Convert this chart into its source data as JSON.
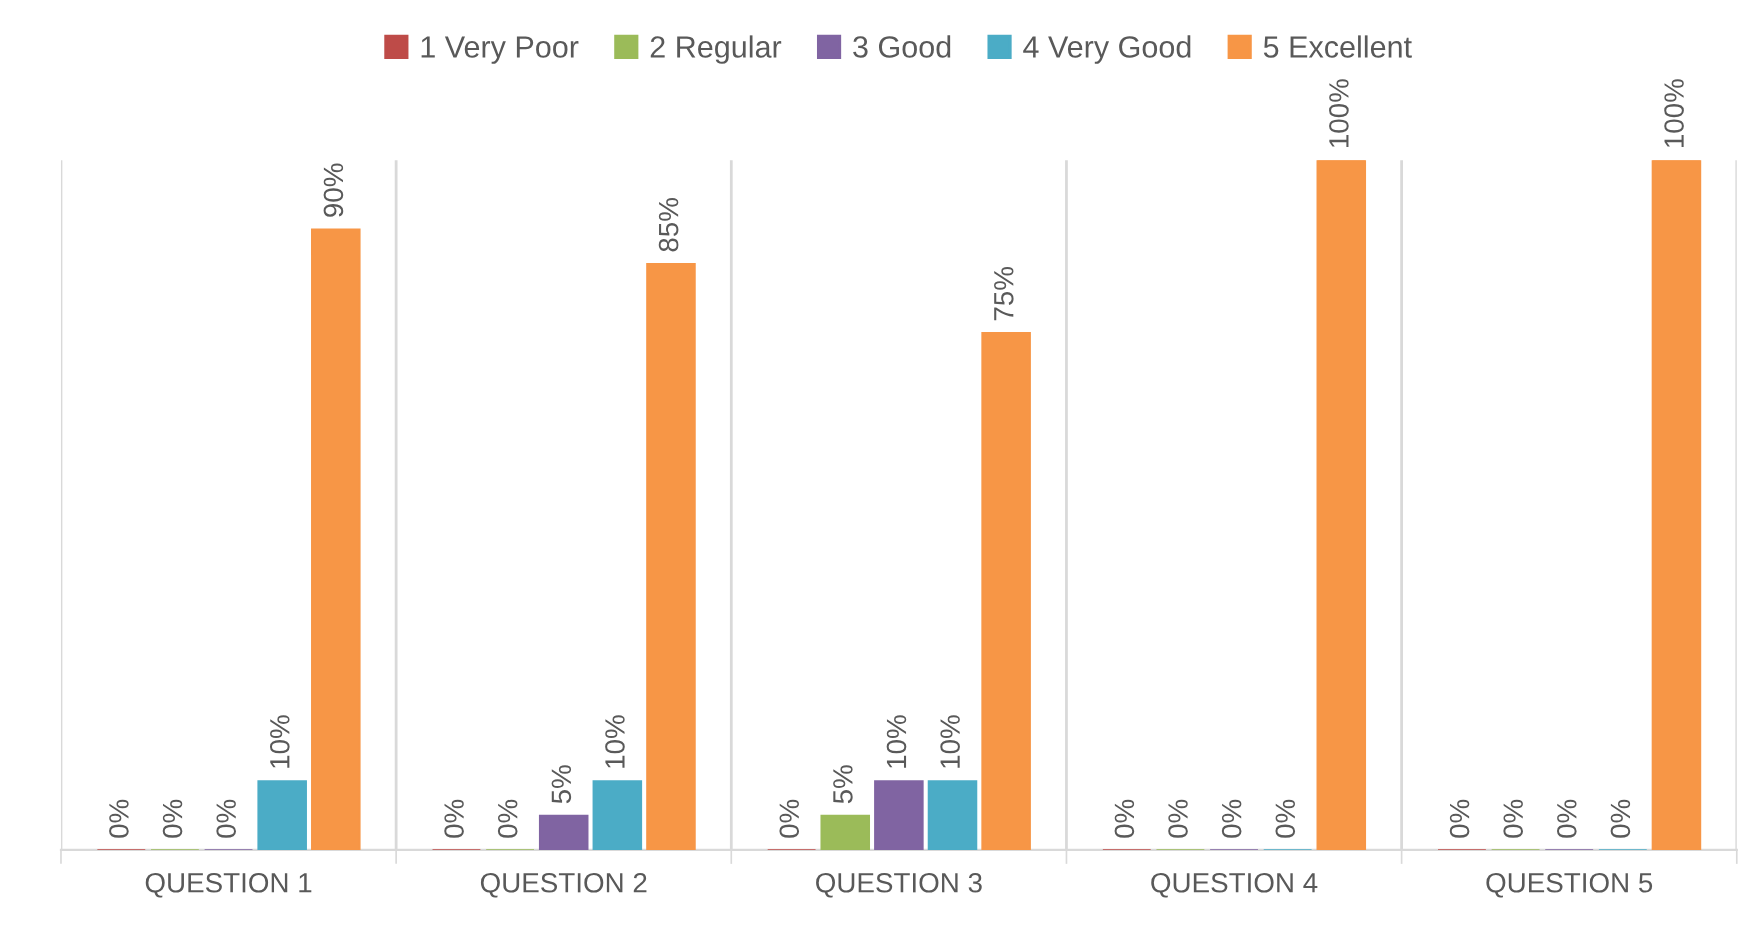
{
  "chart_data": {
    "type": "bar",
    "categories": [
      "QUESTION 1",
      "QUESTION 2",
      "QUESTION 3",
      "QUESTION 4",
      "QUESTION 5"
    ],
    "series": [
      {
        "name": "1 Very Poor",
        "color": "#be4b48",
        "values": [
          0,
          0,
          0,
          0,
          0
        ],
        "value_labels": [
          "0%",
          "0%",
          "0%",
          "0%",
          "0%"
        ]
      },
      {
        "name": "2 Regular",
        "color": "#9bbb59",
        "values": [
          0,
          0,
          5,
          0,
          0
        ],
        "value_labels": [
          "0%",
          "0%",
          "5%",
          "0%",
          "0%"
        ]
      },
      {
        "name": "3 Good",
        "color": "#8064a2",
        "values": [
          0,
          5,
          10,
          0,
          0
        ],
        "value_labels": [
          "0%",
          "5%",
          "10%",
          "0%",
          "0%"
        ]
      },
      {
        "name": "4 Very Good",
        "color": "#4bacc6",
        "values": [
          10,
          10,
          10,
          0,
          0
        ],
        "value_labels": [
          "10%",
          "10%",
          "10%",
          "0%",
          "0%"
        ]
      },
      {
        "name": "5 Excellent",
        "color": "#f79646",
        "values": [
          90,
          85,
          75,
          100,
          100
        ],
        "value_labels": [
          "90%",
          "85%",
          "75%",
          "100%",
          "100%"
        ]
      }
    ],
    "ylim": [
      0,
      100
    ],
    "tick_labels": "x",
    "grid": "x",
    "legend": "top"
  }
}
